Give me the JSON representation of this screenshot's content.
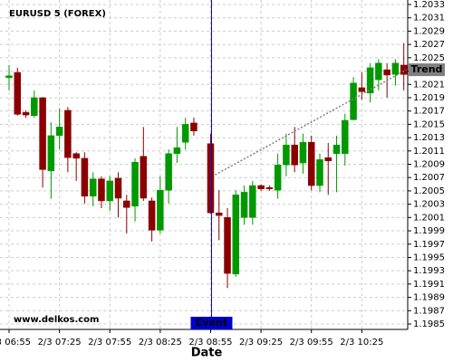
{
  "chart_data": {
    "type": "candlestick",
    "title": "EURUSD 5 (FOREX)",
    "watermark": "www.delkos.com",
    "x_label": "Date",
    "categories": [
      "2/3 06:55",
      null,
      null,
      null,
      null,
      null,
      "2/3 07:25",
      null,
      null,
      null,
      null,
      null,
      "2/3 07:55",
      null,
      null,
      null,
      null,
      null,
      "2/3 08:25",
      null,
      null,
      null,
      null,
      null,
      "2/3 08:55",
      null,
      null,
      null,
      null,
      null,
      "2/3 09:25",
      null,
      null,
      null,
      null,
      null,
      "2/3 09:55",
      null,
      null,
      null,
      null,
      null,
      "2/3 10:25",
      null,
      null,
      null,
      null,
      null
    ],
    "open": [
      1.2022,
      1.20228,
      1.20168,
      1.20163,
      1.2019,
      1.2008,
      1.20133,
      1.20171,
      1.20106,
      1.20099,
      1.20042,
      1.20068,
      1.20035,
      1.20069,
      1.20035,
      1.20027,
      1.20102,
      1.20035,
      1.19991,
      1.20051,
      1.20106,
      1.20123,
      1.20152,
      null,
      1.20121,
      1.20017,
      1.2001,
      1.19925,
      1.2001,
      1.2001,
      1.20058,
      1.20055,
      1.20051,
      1.20089,
      1.20119,
      1.20092,
      1.20123,
      1.20058,
      1.201,
      1.20106,
      1.20106,
      1.20157,
      1.20205,
      1.20197,
      1.20217,
      1.20232,
      1.20225,
      1.20239
    ],
    "high": [
      1.20239,
      1.20235,
      1.20171,
      1.20201,
      1.20191,
      1.20153,
      1.20174,
      1.20176,
      1.20108,
      1.20108,
      1.20078,
      1.20072,
      1.20072,
      1.20078,
      1.20044,
      1.20099,
      1.20146,
      1.2004,
      1.20072,
      1.20112,
      1.20146,
      1.2016,
      1.2016,
      null,
      1.20136,
      1.20051,
      1.20024,
      1.20051,
      1.20058,
      1.20065,
      1.2006,
      1.20058,
      1.20106,
      1.20136,
      1.20146,
      1.20136,
      1.20133,
      1.20106,
      1.20122,
      1.20133,
      1.20166,
      1.20221,
      1.20228,
      1.20242,
      1.20248,
      1.20242,
      1.20248,
      1.20272
    ],
    "low": [
      1.20201,
      1.20163,
      1.2016,
      1.2016,
      1.20055,
      1.20038,
      1.20112,
      1.20078,
      1.20065,
      1.20031,
      1.20027,
      1.20024,
      1.2002,
      1.2001,
      1.19986,
      1.20004,
      1.20035,
      1.19974,
      1.19986,
      1.20031,
      1.20092,
      1.20112,
      1.20133,
      null,
      1.20016,
      1.19976,
      1.19904,
      1.19921,
      1.19999,
      1.19999,
      1.2005,
      1.2005,
      1.20038,
      1.20072,
      1.20078,
      1.20076,
      1.20051,
      1.20048,
      1.20044,
      1.20048,
      1.20088,
      1.20156,
      1.20187,
      1.20183,
      1.20201,
      1.2019,
      1.20208,
      1.20201
    ],
    "close": [
      1.20223,
      1.20165,
      1.20164,
      1.2019,
      1.20082,
      1.20133,
      1.20146,
      1.201,
      1.20099,
      1.20042,
      1.20068,
      1.20035,
      1.20065,
      1.20039,
      1.20025,
      1.20093,
      1.20039,
      1.19991,
      1.20051,
      1.20106,
      1.20115,
      1.2015,
      1.2014,
      null,
      1.20017,
      1.20013,
      1.19926,
      1.20044,
      1.20048,
      1.20058,
      1.20053,
      1.20053,
      1.20089,
      1.20119,
      1.20089,
      1.20123,
      1.20058,
      1.20097,
      1.20095,
      1.20119,
      1.20156,
      1.20212,
      1.20199,
      1.20235,
      1.20242,
      1.20224,
      1.20242,
      1.20225
    ],
    "up_color": "#009900",
    "down_color": "#8b0000",
    "ylim": [
      1.1985,
      1.2033
    ],
    "yticks": [
      1.1985,
      1.1987,
      1.1989,
      1.1991,
      1.1993,
      1.1995,
      1.1997,
      1.1999,
      1.2001,
      1.2003,
      1.2005,
      1.2007,
      1.2009,
      1.2011,
      1.2013,
      1.2015,
      1.2017,
      1.2019,
      1.2021,
      1.2023,
      1.2025,
      1.2027,
      1.2029,
      1.2031,
      1.2033
    ],
    "grid": true,
    "event": {
      "label": "Event",
      "index": 24,
      "color": "#0000cc"
    },
    "trend": {
      "label": "Trend",
      "start_index": 24,
      "end_index": 47,
      "values": [
        1.20074,
        1.20232
      ],
      "color": "#808080"
    }
  }
}
